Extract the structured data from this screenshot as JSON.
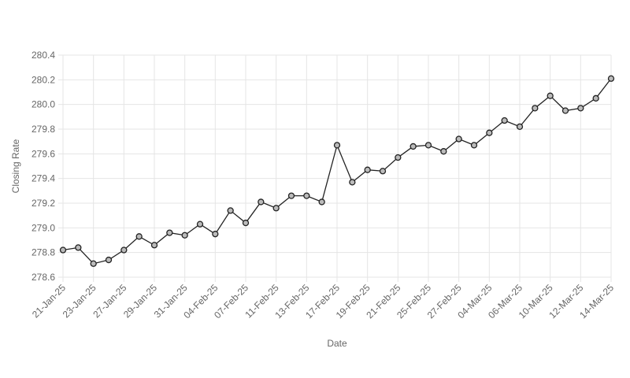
{
  "chart_data": {
    "type": "line",
    "x_label": "Date",
    "y_label": "Closing Rate",
    "categories": [
      "21-Jan-25",
      null,
      "23-Jan-25",
      null,
      "27-Jan-25",
      null,
      "29-Jan-25",
      null,
      "31-Jan-25",
      null,
      "04-Feb-25",
      null,
      "07-Feb-25",
      null,
      "11-Feb-25",
      null,
      "13-Feb-25",
      null,
      "17-Feb-25",
      null,
      "19-Feb-25",
      null,
      "21-Feb-25",
      null,
      "25-Feb-25",
      null,
      "27-Feb-25",
      null,
      "04-Mar-25",
      null,
      "06-Mar-25",
      null,
      "10-Mar-25",
      null,
      "12-Mar-25",
      null,
      "14-Mar-25"
    ],
    "values": [
      278.82,
      278.84,
      278.71,
      278.74,
      278.82,
      278.93,
      278.86,
      278.96,
      278.94,
      279.03,
      278.95,
      279.14,
      279.04,
      279.21,
      279.16,
      279.26,
      279.26,
      279.21,
      279.67,
      279.37,
      279.47,
      279.46,
      279.57,
      279.66,
      279.67,
      279.62,
      279.72,
      279.67,
      279.77,
      279.87,
      279.82,
      279.97,
      280.07,
      279.95,
      279.97,
      280.05,
      280.21
    ],
    "color": "#222222",
    "ylim": [
      278.6,
      280.4
    ],
    "yticks": [
      278.6,
      278.8,
      {
        "value": 279,
        "label": "279.0"
      },
      279.2,
      279.4,
      279.6,
      279.8,
      {
        "value": 280,
        "label": "280.0"
      },
      280.2,
      280.4
    ],
    "grid": true
  }
}
